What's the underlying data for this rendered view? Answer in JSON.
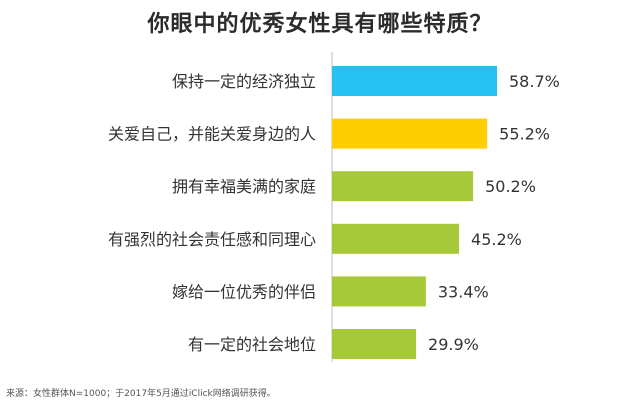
{
  "title": "你眼中的优秀女性具有哪些特质？",
  "source": "来源：女性群体N=1000；于2017年5月通过iClick网络调研获得。",
  "colors": {
    "first": "#25c1f0",
    "second": "#ffcd02",
    "rest": "#a5c938"
  },
  "chart_data": {
    "type": "bar",
    "orientation": "horizontal",
    "categories": [
      "保持一定的经济独立",
      "关爱自己，并能关爱身边的人",
      "拥有幸福美满的家庭",
      "有强烈的社会责任感和同理心",
      "嫁给一位优秀的伴侣",
      "有一定的社会地位"
    ],
    "values": [
      58.7,
      55.2,
      50.2,
      45.2,
      33.4,
      29.9
    ],
    "data_labels": [
      "58.7%",
      "55.2%",
      "50.2%",
      "45.2%",
      "33.4%",
      "29.9%"
    ],
    "unit": "%",
    "xlim": [
      0,
      58.7
    ],
    "grid": false,
    "legend": "none"
  }
}
